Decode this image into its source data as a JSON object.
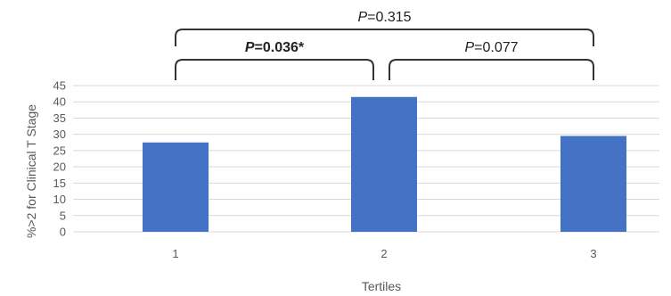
{
  "chart_data": {
    "type": "bar",
    "categories": [
      "1",
      "2",
      "3"
    ],
    "values": [
      27.5,
      41.5,
      29.5
    ],
    "xlabel": "Tertiles",
    "ylabel": "%>2 for Clinical T Stage",
    "ylim": [
      0,
      45
    ],
    "yticks": [
      "0",
      "5",
      "10",
      "15",
      "20",
      "25",
      "30",
      "35",
      "40",
      "45"
    ],
    "grid": true,
    "bar_color": "#4472c4",
    "annotations": [
      {
        "from": 0,
        "to": 2,
        "level": 2,
        "p_letter": "P",
        "p_rest": "=0.315",
        "bold": false
      },
      {
        "from": 0,
        "to": 1,
        "level": 1,
        "p_letter": "P",
        "p_rest": "=0.036*",
        "bold": true
      },
      {
        "from": 1,
        "to": 2,
        "level": 1,
        "p_letter": "P",
        "p_rest": "=0.077",
        "bold": false
      }
    ]
  }
}
